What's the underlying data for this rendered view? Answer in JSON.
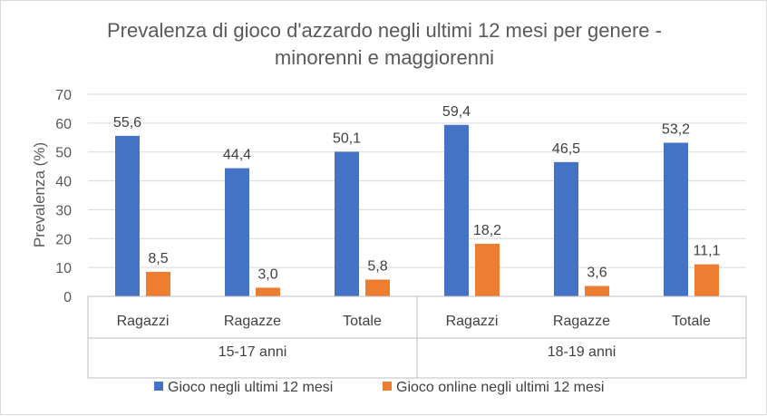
{
  "chart_data": {
    "type": "bar",
    "title_lines": [
      "Prevalenza di gioco d'azzardo negli ultimi 12 mesi per genere -",
      "minorenni e maggiorenni"
    ],
    "ylabel": "Prevalenza (%)",
    "xlabel": "",
    "ylim": [
      0,
      70
    ],
    "yticks": [
      0,
      10,
      20,
      30,
      40,
      50,
      60,
      70
    ],
    "grid": true,
    "legend_position": "bottom",
    "groups": [
      {
        "label": "15-17 anni",
        "categories": [
          "Ragazzi",
          "Ragazze",
          "Totale"
        ]
      },
      {
        "label": "18-19 anni",
        "categories": [
          "Ragazzi",
          "Ragazze",
          "Totale"
        ]
      }
    ],
    "series": [
      {
        "name": "Gioco negli ultimi 12 mesi",
        "color": "#4472c4",
        "values": [
          55.6,
          44.4,
          50.1,
          59.4,
          46.5,
          53.2
        ],
        "labels": [
          "55,6",
          "44,4",
          "50,1",
          "59,4",
          "46,5",
          "53,2"
        ]
      },
      {
        "name": "Gioco online negli ultimi 12 mesi",
        "color": "#ed7d31",
        "values": [
          8.5,
          3.0,
          5.8,
          18.2,
          3.6,
          11.1
        ],
        "labels": [
          "8,5",
          "3,0",
          "5,8",
          "18,2",
          "3,6",
          "11,1"
        ]
      }
    ]
  }
}
